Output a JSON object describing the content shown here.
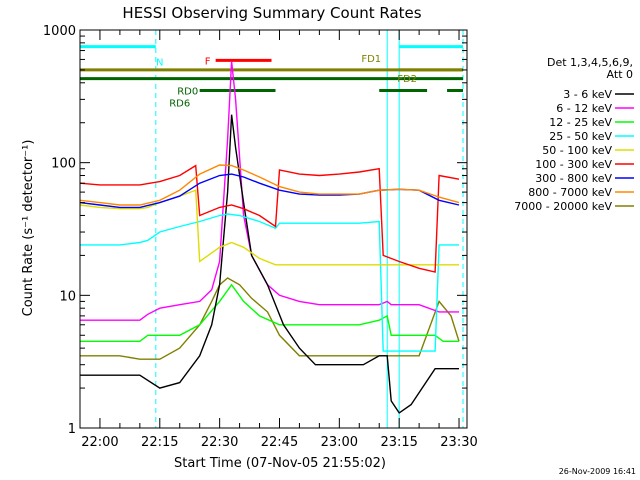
{
  "chart_data": {
    "type": "line",
    "title": "HESSI Observing Summary Count Rates",
    "xlabel": "Start Time (07-Nov-05 21:55:02)",
    "ylabel": "Count Rate (s⁻¹ detector⁻¹)",
    "yscale": "log",
    "ylim": [
      1,
      1000
    ],
    "xlim": [
      "21:55",
      "23:32"
    ],
    "x_ticks": [
      "22:00",
      "22:15",
      "22:30",
      "22:45",
      "23:00",
      "23:15",
      "23:30"
    ],
    "y_ticks": [
      "1",
      "10",
      "100",
      "1000"
    ],
    "timestamp": "26-Nov-2009 16:41",
    "legend_header": [
      "Det 1,3,4,5,6,9,",
      "Att 0"
    ],
    "legend_position": "right",
    "series": [
      {
        "name": "3 - 6 keV",
        "color": "#000000",
        "x": [
          "21:55",
          "22:00",
          "22:05",
          "22:10",
          "22:15",
          "22:20",
          "22:25",
          "22:28",
          "22:30",
          "22:32",
          "22:33",
          "22:34",
          "22:36",
          "22:38",
          "22:42",
          "22:46",
          "22:50",
          "22:54",
          "22:58",
          "23:02",
          "23:06",
          "23:10",
          "23:12",
          "23:13",
          "23:15",
          "23:18",
          "23:24",
          "23:30"
        ],
        "y": [
          2.5,
          2.5,
          2.5,
          2.5,
          2.0,
          2.2,
          3.5,
          6,
          12,
          60,
          230,
          130,
          50,
          20,
          12,
          6,
          4,
          3,
          3,
          3,
          3,
          3.5,
          3.5,
          1.6,
          1.3,
          1.5,
          2.8,
          2.8
        ]
      },
      {
        "name": "6 - 12 keV",
        "color": "#ff00ff",
        "x": [
          "21:55",
          "22:00",
          "22:05",
          "22:10",
          "22:12",
          "22:15",
          "22:20",
          "22:25",
          "22:28",
          "22:30",
          "22:32",
          "22:33",
          "22:34",
          "22:36",
          "22:38",
          "22:42",
          "22:45",
          "22:50",
          "22:55",
          "23:00",
          "23:05",
          "23:10",
          "23:12",
          "23:13",
          "23:15",
          "23:20",
          "23:25",
          "23:30"
        ],
        "y": [
          6.5,
          6.5,
          6.5,
          6.5,
          7.2,
          8,
          8.5,
          9,
          11,
          18,
          150,
          580,
          300,
          40,
          20,
          12,
          10,
          9,
          8.5,
          8.5,
          8.5,
          8.5,
          9,
          8.5,
          8.5,
          8.5,
          7.5,
          7.5
        ]
      },
      {
        "name": "12 - 25 keV",
        "color": "#00ff00",
        "x": [
          "21:55",
          "22:00",
          "22:05",
          "22:10",
          "22:12",
          "22:15",
          "22:20",
          "22:25",
          "22:30",
          "22:33",
          "22:36",
          "22:40",
          "22:45",
          "22:50",
          "22:55",
          "23:00",
          "23:05",
          "23:10",
          "23:12",
          "23:13",
          "23:15",
          "23:20",
          "23:24",
          "23:26",
          "23:30"
        ],
        "y": [
          4.5,
          4.5,
          4.5,
          4.5,
          5,
          5,
          5,
          6,
          9,
          12,
          9,
          7,
          6,
          6,
          6,
          6,
          6,
          6.5,
          7,
          5,
          5,
          5,
          5,
          4.5,
          4.5
        ]
      },
      {
        "name": "25 - 50 keV",
        "color": "#00ffff",
        "x": [
          "21:55",
          "22:00",
          "22:05",
          "22:10",
          "22:12",
          "22:15",
          "22:20",
          "22:25",
          "22:30",
          "22:32",
          "22:35",
          "22:40",
          "22:44",
          "22:45",
          "22:50",
          "22:55",
          "23:00",
          "23:05",
          "23:10",
          "23:11",
          "23:15",
          "23:20",
          "23:24",
          "23:25",
          "23:30"
        ],
        "y": [
          24,
          24,
          24,
          25,
          26,
          30,
          33,
          36,
          40,
          41,
          40,
          36,
          32,
          35,
          35,
          35,
          35,
          35,
          36,
          3.8,
          3.8,
          3.8,
          3.8,
          24,
          24
        ]
      },
      {
        "name": "50 - 100 keV",
        "color": "#dddd00",
        "x": [
          "21:55",
          "22:00",
          "22:05",
          "22:10",
          "22:12",
          "22:15",
          "22:20",
          "22:24",
          "22:25",
          "22:30",
          "22:33",
          "22:36",
          "22:40",
          "22:44",
          "22:45",
          "22:50",
          "22:55",
          "23:00",
          "23:05",
          "23:10",
          "23:11",
          "23:15",
          "23:20",
          "23:24",
          "23:25",
          "23:30"
        ],
        "y": [
          48,
          46,
          45,
          45,
          46,
          50,
          56,
          62,
          18,
          23,
          25,
          23,
          19,
          17,
          17,
          17,
          17,
          17,
          17,
          17,
          17,
          17,
          17,
          17,
          17,
          17
        ]
      },
      {
        "name": "100 - 300 keV",
        "color": "#ff0000",
        "x": [
          "21:55",
          "22:00",
          "22:05",
          "22:10",
          "22:15",
          "22:20",
          "22:24",
          "22:25",
          "22:30",
          "22:33",
          "22:36",
          "22:40",
          "22:44",
          "22:45",
          "22:50",
          "22:55",
          "23:00",
          "23:05",
          "23:10",
          "23:11",
          "23:15",
          "23:20",
          "23:24",
          "23:25",
          "23:30"
        ],
        "y": [
          70,
          68,
          68,
          68,
          72,
          80,
          95,
          40,
          46,
          48,
          45,
          40,
          33,
          88,
          82,
          80,
          82,
          85,
          90,
          20,
          18,
          16,
          15,
          80,
          75
        ]
      },
      {
        "name": "300 - 800 keV",
        "color": "#0000ff",
        "x": [
          "21:55",
          "22:00",
          "22:05",
          "22:10",
          "22:15",
          "22:20",
          "22:25",
          "22:30",
          "22:33",
          "22:36",
          "22:40",
          "22:45",
          "22:50",
          "22:55",
          "23:00",
          "23:05",
          "23:10",
          "23:15",
          "23:20",
          "23:25",
          "23:30"
        ],
        "y": [
          50,
          48,
          46,
          46,
          50,
          56,
          70,
          80,
          82,
          78,
          70,
          62,
          58,
          57,
          57,
          58,
          62,
          63,
          62,
          52,
          48
        ]
      },
      {
        "name": "800 - 7000 keV",
        "color": "#ff8800",
        "x": [
          "21:55",
          "22:00",
          "22:05",
          "22:10",
          "22:15",
          "22:20",
          "22:25",
          "22:30",
          "22:33",
          "22:36",
          "22:40",
          "22:45",
          "22:50",
          "22:55",
          "23:00",
          "23:05",
          "23:10",
          "23:15",
          "23:20",
          "23:25",
          "23:30"
        ],
        "y": [
          52,
          50,
          48,
          48,
          52,
          62,
          82,
          96,
          95,
          88,
          78,
          66,
          60,
          58,
          58,
          58,
          62,
          63,
          62,
          55,
          50
        ]
      },
      {
        "name": "7000 - 20000 keV",
        "color": "#808000",
        "x": [
          "21:55",
          "22:00",
          "22:05",
          "22:10",
          "22:15",
          "22:20",
          "22:25",
          "22:28",
          "22:30",
          "22:32",
          "22:35",
          "22:38",
          "22:42",
          "22:45",
          "22:50",
          "22:55",
          "23:00",
          "23:05",
          "23:10",
          "23:15",
          "23:20",
          "23:25",
          "23:28",
          "23:30"
        ],
        "y": [
          3.5,
          3.5,
          3.5,
          3.3,
          3.3,
          4,
          6,
          9,
          12,
          13.5,
          12,
          9.5,
          7.5,
          5,
          3.5,
          3.5,
          3.5,
          3.5,
          3.5,
          3.5,
          3.5,
          9,
          7,
          4.5
        ]
      }
    ],
    "annotations": [
      {
        "text": "N",
        "color": "#00ffff",
        "x_start": "21:55",
        "x_end": "22:14",
        "y": 750
      },
      {
        "text": "",
        "color": "#00ffff",
        "x_start": "23:15",
        "x_end": "23:31",
        "y": 750
      },
      {
        "text": "F",
        "color": "#ff0000",
        "x_start": "22:29",
        "x_end": "22:43",
        "y": 590
      },
      {
        "text": "FD1",
        "color": "#808000",
        "x_start": "21:55",
        "x_end": "23:31",
        "y": 500
      },
      {
        "text": "FD2",
        "color": "#808000",
        "x_start": "23:15",
        "x_end": "23:31",
        "y": 500
      },
      {
        "text": "RD0",
        "color": "#006400",
        "x_start": "21:55",
        "x_end": "22:44",
        "y": 430
      },
      {
        "text": "",
        "color": "#006400",
        "x_start": "22:44",
        "x_end": "23:31",
        "y": 430
      },
      {
        "text": "RD6",
        "color": "#006400",
        "x_start": "22:25",
        "x_end": "22:44",
        "y": 350
      },
      {
        "text": "",
        "color": "#006400",
        "x_start": "23:10",
        "x_end": "23:22",
        "y": 350
      },
      {
        "text": "",
        "color": "#006400",
        "x_start": "23:27",
        "x_end": "23:31",
        "y": 350
      }
    ],
    "vertical_markers": [
      {
        "x": "21:55",
        "style": "solid",
        "color": "#00ffff"
      },
      {
        "x": "22:14",
        "style": "dashed",
        "color": "#00ffff"
      },
      {
        "x": "23:12",
        "style": "solid",
        "color": "#00ffff"
      },
      {
        "x": "23:15",
        "style": "solid",
        "color": "#00ffff"
      },
      {
        "x": "23:31",
        "style": "dashed",
        "color": "#00ffff"
      }
    ],
    "grid": false
  }
}
